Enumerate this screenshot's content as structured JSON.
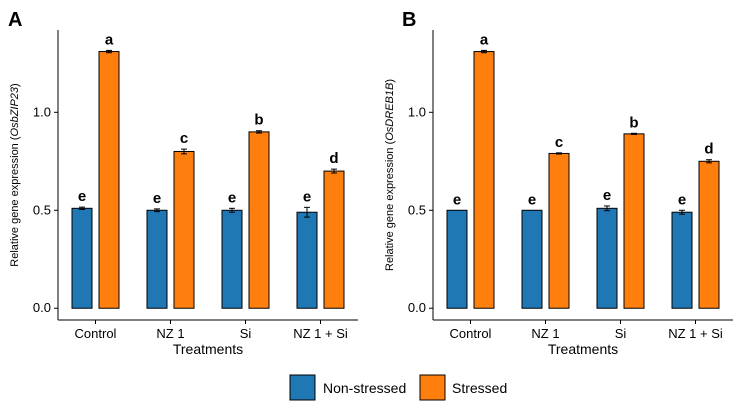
{
  "legend": {
    "items": [
      {
        "label": "Non-stressed",
        "color": "#1f77b4"
      },
      {
        "label": "Stressed",
        "color": "#ff7f0e"
      }
    ]
  },
  "chart_data": [
    {
      "type": "bar",
      "panel": "A",
      "categories": [
        "Control",
        "NZ 1",
        "Si",
        "NZ 1 + Si"
      ],
      "xlabel": "Treatments",
      "ylabel_prefix": "Relative gene expression (",
      "ylabel_gene": "OsbZIP23",
      "ylabel_suffix": ")",
      "ylim": [
        -0.06,
        1.42
      ],
      "yticks": [
        "0.0",
        "0.5",
        "1.0"
      ],
      "series": [
        {
          "name": "Non-stressed",
          "color": "#1f77b4",
          "values": [
            0.51,
            0.5,
            0.5,
            0.49
          ],
          "errors": [
            0.006,
            0.007,
            0.01,
            0.025
          ],
          "letters": [
            "e",
            "e",
            "e",
            "e"
          ]
        },
        {
          "name": "Stressed",
          "color": "#ff7f0e",
          "values": [
            1.31,
            0.8,
            0.9,
            0.7
          ],
          "errors": [
            0.006,
            0.012,
            0.006,
            0.01
          ],
          "letters": [
            "a",
            "c",
            "b",
            "d"
          ]
        }
      ]
    },
    {
      "type": "bar",
      "panel": "B",
      "categories": [
        "Control",
        "NZ 1",
        "Si",
        "NZ 1 + Si"
      ],
      "xlabel": "Treatments",
      "ylabel_prefix": "Relative gene expression (",
      "ylabel_gene": "OsDREB1B",
      "ylabel_suffix": ")",
      "ylim": [
        -0.06,
        1.42
      ],
      "yticks": [
        "0.0",
        "0.5",
        "1.0"
      ],
      "series": [
        {
          "name": "Non-stressed",
          "color": "#1f77b4",
          "values": [
            0.5,
            0.5,
            0.51,
            0.49
          ],
          "errors": [
            0.0,
            0.0,
            0.012,
            0.01
          ],
          "letters": [
            "e",
            "e",
            "e",
            "e"
          ]
        },
        {
          "name": "Stressed",
          "color": "#ff7f0e",
          "values": [
            1.31,
            0.79,
            0.89,
            0.75
          ],
          "errors": [
            0.006,
            0.003,
            0.003,
            0.008
          ],
          "letters": [
            "a",
            "c",
            "b",
            "d"
          ]
        }
      ]
    }
  ]
}
